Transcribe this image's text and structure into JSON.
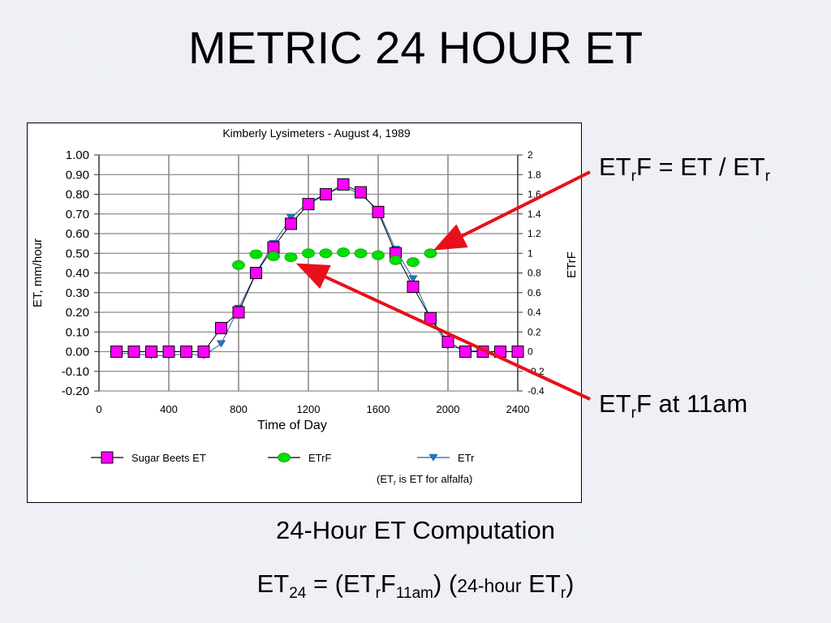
{
  "slide": {
    "title": "METRIC 24 HOUR ET",
    "caption": "24-Hour ET Computation"
  },
  "annotations": {
    "etrf_def": {
      "a": "ET",
      "b": "r",
      "c": "F = ET / ET",
      "d": "r"
    },
    "etrf_11am": {
      "a": "ET",
      "b": "r",
      "c": "F at 11am"
    }
  },
  "formula": {
    "p1": "ET",
    "p2": "24",
    "p3": " = (ET",
    "p4": "r",
    "p5": "F",
    "p6": "11am",
    "p7": ") (",
    "p8": "24-hour",
    "p9": " ET",
    "p10": "r",
    "p11": ")"
  },
  "colors": {
    "sugar_beets": "#ff00ff",
    "etrf": "#00e000",
    "etr": "#1e78c8",
    "arrow": "#e8101a"
  },
  "chart_data": {
    "type": "line",
    "title": "Kimberly Lysimeters - August 4, 1989",
    "xlabel": "Time of Day",
    "ylabel": "ET, mm/hour",
    "y2label": "ETrF",
    "xlim": [
      0,
      2400
    ],
    "ylim": [
      -0.2,
      1.0
    ],
    "y2lim": [
      -0.4,
      2.0
    ],
    "xticks": [
      "0",
      "400",
      "800",
      "1200",
      "1600",
      "2000",
      "2400"
    ],
    "yticks": [
      "1.00",
      "0.90",
      "0.80",
      "0.70",
      "0.60",
      "0.50",
      "0.40",
      "0.30",
      "0.20",
      "0.10",
      "0.00",
      "-0.10",
      "-0.20"
    ],
    "y2ticks": [
      "2",
      "1.8",
      "1.6",
      "1.4",
      "1.2",
      "1",
      "0.8",
      "0.6",
      "0.4",
      "0.2",
      "0",
      "-0.2",
      "-0.4"
    ],
    "grid": true,
    "legend_position": "bottom",
    "legend_note": {
      "a": "(ET",
      "b": "r",
      "c": " is ET for alfalfa)"
    },
    "series": [
      {
        "name": "Sugar Beets ET",
        "axis": "left",
        "marker": "square",
        "x": [
          100,
          200,
          300,
          400,
          500,
          600,
          700,
          800,
          900,
          1000,
          1100,
          1200,
          1300,
          1400,
          1500,
          1600,
          1700,
          1800,
          1900,
          2000,
          2100,
          2200,
          2300,
          2400
        ],
        "y": [
          0.0,
          0.0,
          0.0,
          0.0,
          0.0,
          0.0,
          0.12,
          0.2,
          0.4,
          0.53,
          0.65,
          0.75,
          0.8,
          0.85,
          0.81,
          0.71,
          0.5,
          0.33,
          0.17,
          0.05,
          0.0,
          0.0,
          0.0,
          0.0
        ]
      },
      {
        "name": "ETrF",
        "axis": "right",
        "marker": "circle",
        "x": [
          800,
          900,
          1000,
          1100,
          1200,
          1300,
          1400,
          1500,
          1600,
          1700,
          1800,
          1900
        ],
        "y": [
          0.88,
          0.99,
          0.97,
          0.96,
          1.0,
          1.0,
          1.01,
          1.0,
          0.98,
          0.93,
          0.91,
          1.0
        ]
      },
      {
        "name": "ETr",
        "axis": "left",
        "marker": "triangle",
        "x": [
          100,
          200,
          300,
          400,
          500,
          600,
          700,
          800,
          900,
          1000,
          1100,
          1200,
          1300,
          1400,
          1500,
          1600,
          1700,
          1800,
          1900,
          2000,
          2100,
          2200,
          2300,
          2400
        ],
        "y": [
          -0.01,
          -0.01,
          -0.02,
          -0.02,
          -0.01,
          -0.02,
          0.04,
          0.22,
          0.4,
          0.55,
          0.68,
          0.76,
          0.8,
          0.84,
          0.8,
          0.72,
          0.52,
          0.37,
          0.17,
          0.03,
          0.01,
          0.0,
          0.0,
          0.0
        ]
      }
    ]
  }
}
